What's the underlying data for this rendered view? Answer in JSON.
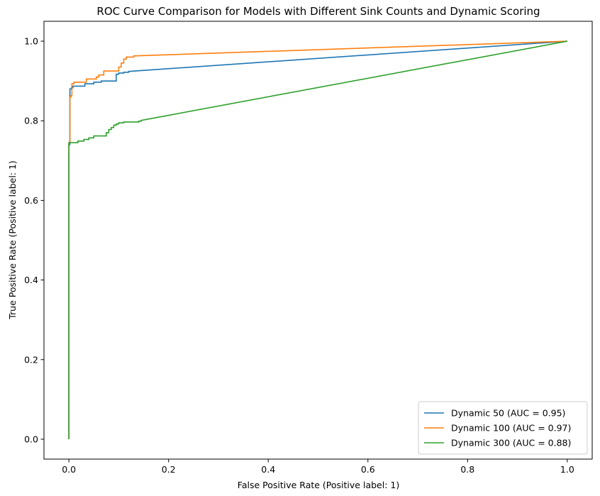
{
  "chart_data": {
    "type": "line",
    "title": "ROC Curve Comparison for Models with Different Sink Counts and Dynamic Scoring",
    "xlabel": "False Positive Rate (Positive label: 1)",
    "ylabel": "True Positive Rate (Positive label: 1)",
    "xlim": [
      -0.05,
      1.05
    ],
    "ylim": [
      -0.05,
      1.05
    ],
    "x_ticks": [
      "0.0",
      "0.2",
      "0.4",
      "0.6",
      "0.8",
      "1.0"
    ],
    "y_ticks": [
      "0.0",
      "0.2",
      "0.4",
      "0.6",
      "0.8",
      "1.0"
    ],
    "grid": false,
    "legend_position": "lower-right",
    "series": [
      {
        "name": "Dynamic 50 (AUC = 0.95)",
        "color": "#1f77b4",
        "x": [
          0,
          0,
          0.002,
          0.002,
          0.005,
          0.005,
          0.008,
          0.008,
          0.032,
          0.032,
          0.05,
          0.05,
          0.065,
          0.065,
          0.095,
          0.095,
          0.1,
          0.1,
          0.11,
          0.11,
          0.12,
          0.12,
          1
        ],
        "y": [
          0,
          0.74,
          0.74,
          0.88,
          0.88,
          0.883,
          0.883,
          0.887,
          0.887,
          0.893,
          0.893,
          0.897,
          0.897,
          0.9,
          0.9,
          0.917,
          0.917,
          0.92,
          0.92,
          0.922,
          0.922,
          0.924,
          1
        ]
      },
      {
        "name": "Dynamic 100 (AUC = 0.97)",
        "color": "#ff7f0e",
        "x": [
          0,
          0,
          0.002,
          0.002,
          0.004,
          0.004,
          0.006,
          0.006,
          0.01,
          0.01,
          0.015,
          0.015,
          0.035,
          0.035,
          0.055,
          0.055,
          0.06,
          0.06,
          0.07,
          0.07,
          0.1,
          0.1,
          0.105,
          0.105,
          0.11,
          0.11,
          0.115,
          0.115,
          0.13,
          0.13,
          1
        ],
        "y": [
          0,
          0.745,
          0.745,
          0.86,
          0.86,
          0.863,
          0.863,
          0.893,
          0.893,
          0.897,
          0.897,
          0.897,
          0.897,
          0.905,
          0.905,
          0.91,
          0.91,
          0.915,
          0.915,
          0.925,
          0.925,
          0.935,
          0.935,
          0.945,
          0.945,
          0.955,
          0.955,
          0.96,
          0.96,
          0.963,
          1
        ]
      },
      {
        "name": "Dynamic 300 (AUC = 0.88)",
        "color": "#2ca02c",
        "x": [
          0,
          0,
          0.018,
          0.018,
          0.03,
          0.03,
          0.04,
          0.04,
          0.05,
          0.05,
          0.075,
          0.075,
          0.08,
          0.08,
          0.085,
          0.085,
          0.09,
          0.09,
          0.095,
          0.095,
          0.1,
          0.1,
          0.11,
          0.11,
          0.14,
          0.14,
          0.145,
          0.145,
          1
        ],
        "y": [
          0,
          0.745,
          0.745,
          0.749,
          0.749,
          0.753,
          0.753,
          0.757,
          0.757,
          0.762,
          0.762,
          0.77,
          0.77,
          0.778,
          0.778,
          0.783,
          0.783,
          0.789,
          0.789,
          0.792,
          0.792,
          0.795,
          0.795,
          0.797,
          0.797,
          0.799,
          0.799,
          0.801,
          1
        ]
      }
    ]
  }
}
